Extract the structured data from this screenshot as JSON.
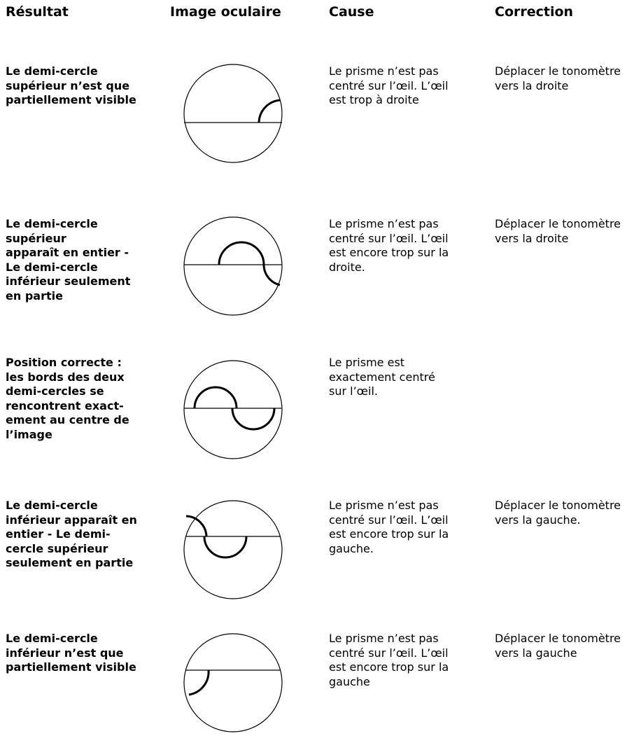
{
  "header": {
    "columns": [
      "Résultat",
      "Image oculaire",
      "Cause",
      "Correction"
    ]
  },
  "table": {
    "rows": [
      {
        "result": [
          "Le demi-cercle",
          "supérieur n’est que",
          "partiellement visible"
        ],
        "cause": [
          "Le prisme n’est pas",
          "centré sur l’œil. L’œil",
          "est trop à droite"
        ],
        "correction": [
          "Déplacer le tonomètre",
          "vers la droite"
        ]
      },
      {
        "result": [
          "Le demi-cercle",
          "supérieur",
          "apparaît en entier -",
          "Le demi-cercle",
          "inférieur seulement",
          "en partie"
        ],
        "cause": [
          "Le prisme n’est pas",
          "centré sur l’œil.  L’œil",
          "est encore trop sur la",
          "droite."
        ],
        "correction": [
          "Déplacer le tonomètre",
          "vers la droite"
        ]
      },
      {
        "result": [
          "Position correcte :",
          "les bords des deux",
          "demi-cercles se",
          "rencontrent exact-",
          "ement au centre de",
          "l’image"
        ],
        "cause": [
          "Le prisme est",
          "exactement centré",
          "sur l’œil."
        ],
        "correction": []
      },
      {
        "result": [
          "Le demi-cercle",
          "inférieur apparaît en",
          "entier - Le demi-",
          "cercle supérieur",
          "seulement en partie"
        ],
        "cause": [
          "Le prisme n’est pas",
          "centré sur l’œil. L’œil",
          "est encore trop sur la",
          "gauche."
        ],
        "correction": [
          "Déplacer le tonomètre",
          "vers la gauche."
        ]
      },
      {
        "result": [
          "Le demi-cercle",
          "inférieur n’est que",
          "partiellement visible"
        ],
        "cause": [
          "Le prisme n’est pas",
          "centré sur l’œil. L’œil",
          "est encore trop sur la",
          "gauche"
        ],
        "correction": [
          "Déplacer le tonomètre",
          "vers la gauche"
        ]
      }
    ]
  }
}
